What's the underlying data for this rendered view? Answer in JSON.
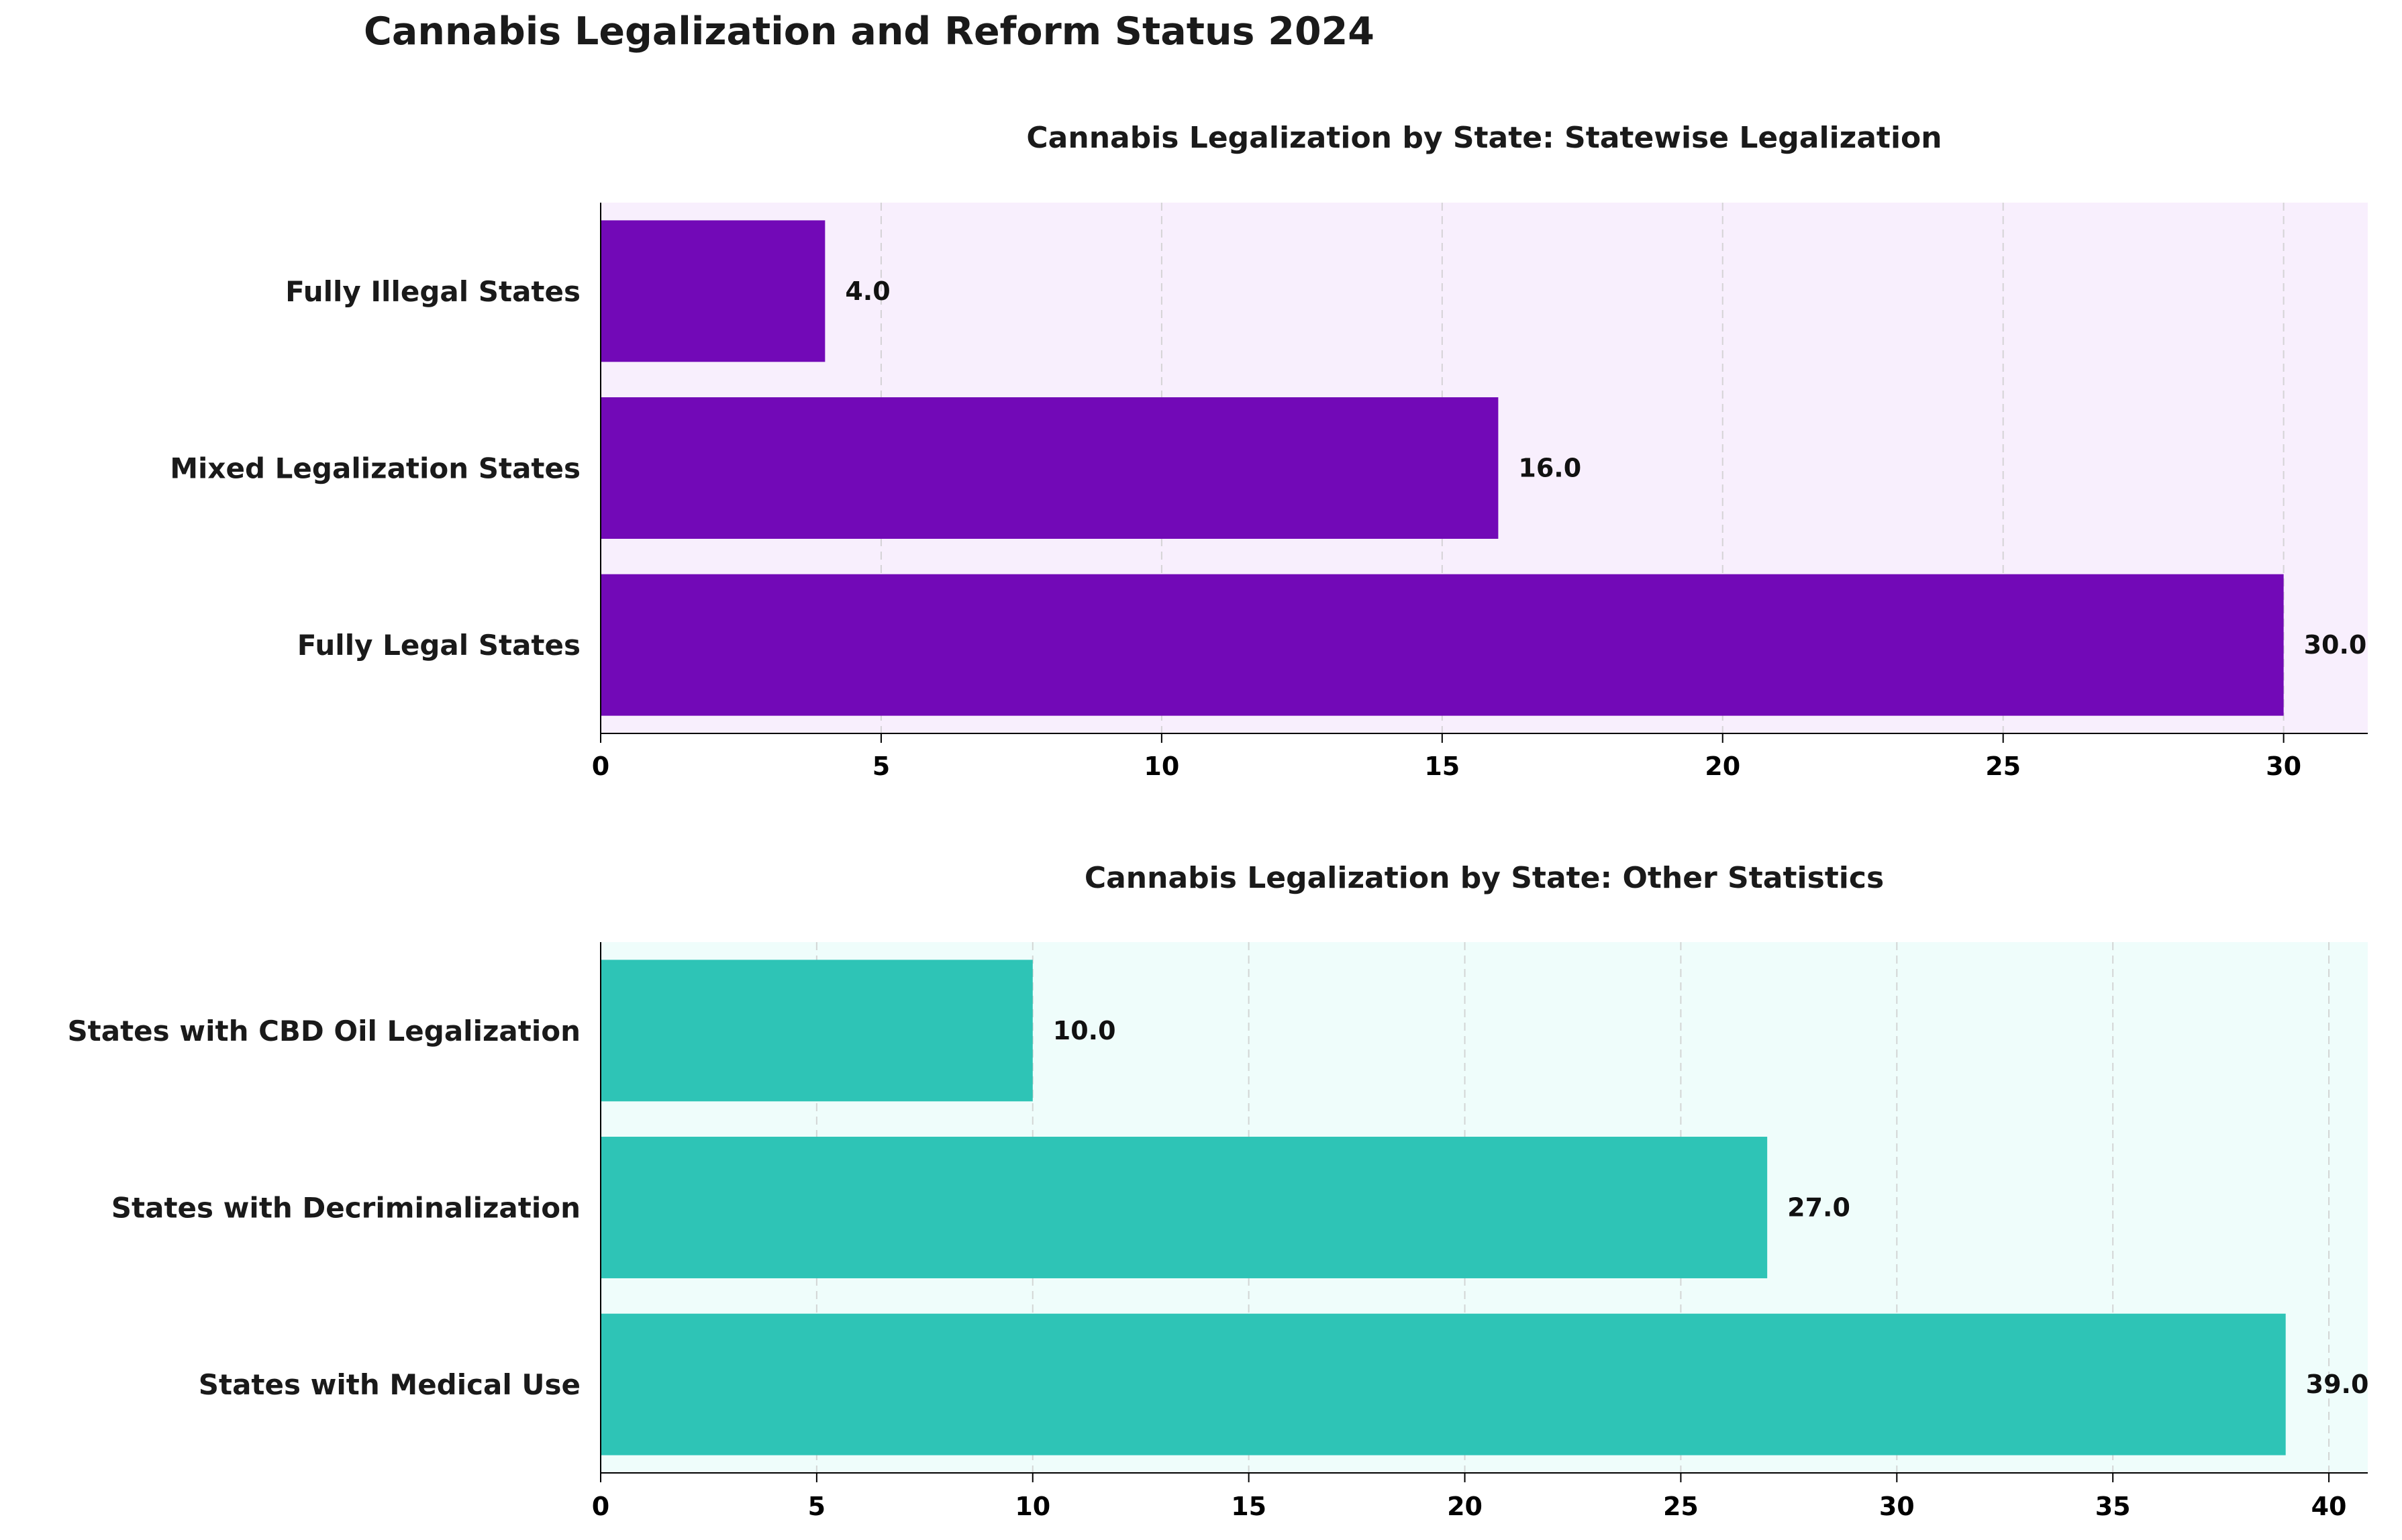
{
  "suptitle": "Cannabis Legalization and Reform Status 2024",
  "chart_data": [
    {
      "type": "bar",
      "orientation": "horizontal",
      "title": "Cannabis Legalization by State: Statewise Legalization",
      "categories": [
        "Fully Legal States",
        "Mixed Legalization States",
        "Fully Illegal States"
      ],
      "values": [
        30,
        16,
        4
      ],
      "value_labels": [
        "30.0",
        "16.0",
        "4.0"
      ],
      "xlim": [
        0,
        31.5
      ],
      "xticks": [
        0,
        5,
        10,
        15,
        20,
        25,
        30
      ],
      "grid": "x-dashed",
      "bar_color": "#7209b7",
      "background": "#f8effd",
      "xlabel": "",
      "ylabel": ""
    },
    {
      "type": "bar",
      "orientation": "horizontal",
      "title": "Cannabis Legalization by State: Other Statistics",
      "categories": [
        "States with Medical Use",
        "States with Decriminalization",
        "States with CBD Oil Legalization"
      ],
      "values": [
        39,
        27,
        10
      ],
      "value_labels": [
        "39.0",
        "27.0",
        "10.0"
      ],
      "xlim": [
        0,
        40.9
      ],
      "xticks": [
        0,
        5,
        10,
        15,
        20,
        25,
        30,
        35,
        40
      ],
      "grid": "x-dashed",
      "bar_color": "#2ec4b6",
      "background": "#effdfb",
      "xlabel": "",
      "ylabel": ""
    }
  ]
}
